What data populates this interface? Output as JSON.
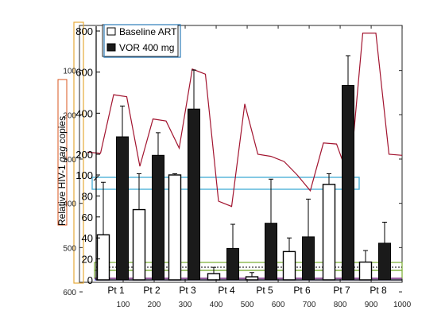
{
  "chart_data": {
    "type": "bar",
    "categories": [
      "Pt 1",
      "Pt 2",
      "Pt 3",
      "Pt 4",
      "Pt 5",
      "Pt 6",
      "Pt 7",
      "Pt 8"
    ],
    "ylabel_parts": [
      "Relative HIV-1 ",
      "gag",
      " copies"
    ],
    "legend_placement": "top-left",
    "series": [
      {
        "name": "Baseline ART",
        "values": [
          43,
          67,
          100,
          6,
          3,
          27,
          91,
          17
        ],
        "err_hi": [
          93,
          106,
          106,
          12,
          7,
          40,
          106,
          28
        ]
      },
      {
        "name": "VOR 400 mg",
        "values": [
          285,
          195,
          420,
          30,
          54,
          41,
          535,
          35
        ],
        "err_hi": [
          435,
          305,
          610,
          53,
          96,
          77,
          680,
          55
        ]
      }
    ],
    "left_ticks": [
      {
        "label": "800",
        "v": 800
      },
      {
        "label": "600",
        "v": 600
      },
      {
        "label": "400",
        "v": 400
      },
      {
        "label": "200",
        "v": 200
      },
      {
        "label": "100",
        "v": 100
      },
      {
        "label": "80",
        "v": 80
      },
      {
        "label": "60",
        "v": 60
      },
      {
        "label": "40",
        "v": 40
      },
      {
        "label": "20",
        "v": 20
      },
      {
        "label": "0",
        "v": 0
      }
    ],
    "outer_y_ticks": [
      100,
      200,
      300,
      400,
      500,
      600
    ],
    "outer_x_ticks": [
      100,
      200,
      300,
      400,
      500,
      600,
      700,
      800,
      900,
      1000
    ],
    "trace_overlay": [
      210,
      205,
      490,
      480,
      142,
      372,
      362,
      230,
      615,
      590,
      75,
      70,
      445,
      200,
      190,
      165,
      100,
      85,
      255,
      250,
      95,
      790,
      790,
      200,
      195
    ]
  }
}
